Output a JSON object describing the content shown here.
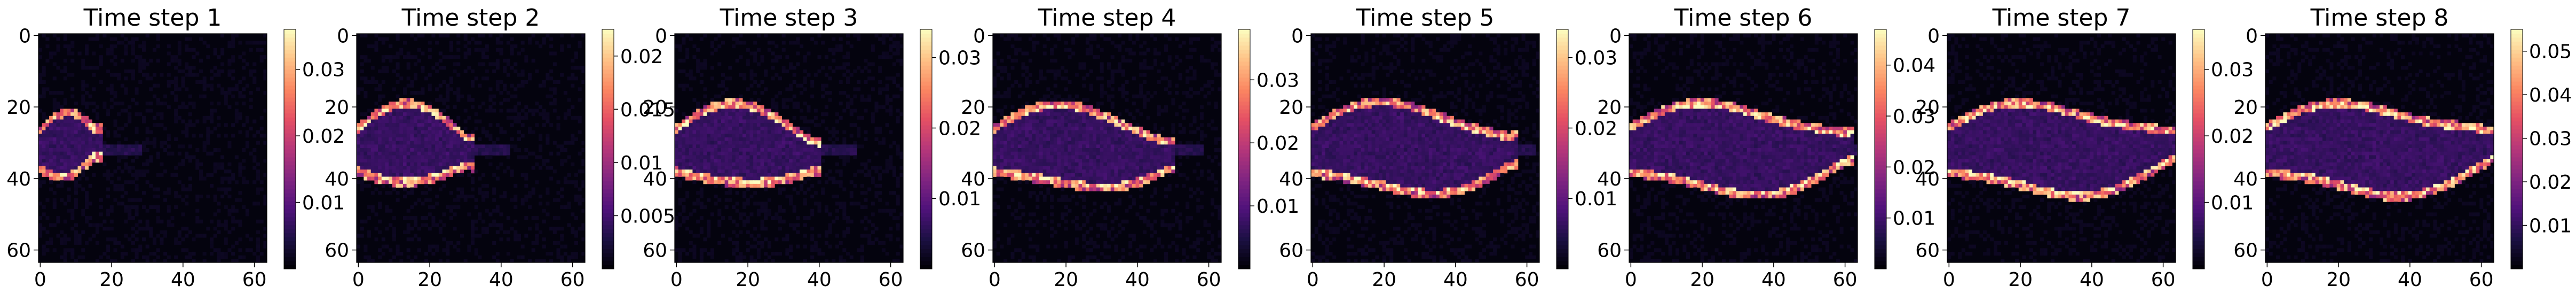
{
  "chart_data": [
    {
      "type": "heatmap",
      "title": "Time step 1",
      "grid_size": 64,
      "xlim": [
        0,
        63
      ],
      "ylim": [
        63,
        0
      ],
      "x_ticks": [
        0,
        20,
        40,
        60
      ],
      "y_ticks": [
        0,
        20,
        40,
        60
      ],
      "colorbar_ticks": [
        0.01,
        0.02,
        0.03
      ],
      "colorbar_range": [
        0.0,
        0.036
      ],
      "front_x": 15,
      "front_amplitude": 5,
      "front_tail_x": 28
    },
    {
      "type": "heatmap",
      "title": "Time step 2",
      "grid_size": 64,
      "xlim": [
        0,
        63
      ],
      "ylim": [
        63,
        0
      ],
      "x_ticks": [
        0,
        20,
        40,
        60
      ],
      "y_ticks": [
        0,
        20,
        40,
        60
      ],
      "colorbar_ticks": [
        0.005,
        0.01,
        0.015,
        0.02
      ],
      "colorbar_range": [
        0.0,
        0.0225
      ],
      "front_x": 30,
      "front_amplitude": 7,
      "front_tail_x": 42
    },
    {
      "type": "heatmap",
      "title": "Time step 3",
      "grid_size": 64,
      "xlim": [
        0,
        63
      ],
      "ylim": [
        63,
        0
      ],
      "x_ticks": [
        0,
        20,
        40,
        60
      ],
      "y_ticks": [
        0,
        20,
        40,
        60
      ],
      "colorbar_ticks": [
        0.01,
        0.02,
        0.03
      ],
      "colorbar_range": [
        0.0,
        0.034
      ],
      "front_x": 38,
      "front_amplitude": 7,
      "front_tail_x": 50
    },
    {
      "type": "heatmap",
      "title": "Time step 4",
      "grid_size": 64,
      "xlim": [
        0,
        63
      ],
      "ylim": [
        63,
        0
      ],
      "x_ticks": [
        0,
        20,
        40,
        60
      ],
      "y_ticks": [
        0,
        20,
        40,
        60
      ],
      "colorbar_ticks": [
        0.01,
        0.02,
        0.03
      ],
      "colorbar_range": [
        0.0,
        0.038
      ],
      "front_x": 48,
      "front_amplitude": 7,
      "front_tail_x": 58
    },
    {
      "type": "heatmap",
      "title": "Time step 5",
      "grid_size": 64,
      "xlim": [
        0,
        63
      ],
      "ylim": [
        63,
        0
      ],
      "x_ticks": [
        0,
        20,
        40,
        60
      ],
      "y_ticks": [
        0,
        20,
        40,
        60
      ],
      "colorbar_ticks": [
        0.01,
        0.02,
        0.03
      ],
      "colorbar_range": [
        0.0,
        0.034
      ],
      "front_x": 55,
      "front_amplitude": 8,
      "front_tail_x": 62
    },
    {
      "type": "heatmap",
      "title": "Time step 6",
      "grid_size": 64,
      "xlim": [
        0,
        63
      ],
      "ylim": [
        63,
        0
      ],
      "x_ticks": [
        0,
        20,
        40,
        60
      ],
      "y_ticks": [
        0,
        20,
        40,
        60
      ],
      "colorbar_ticks": [
        0.01,
        0.02,
        0.03,
        0.04
      ],
      "colorbar_range": [
        0.0,
        0.047
      ],
      "front_x": 60,
      "front_amplitude": 8,
      "front_tail_x": 63
    },
    {
      "type": "heatmap",
      "title": "Time step 7",
      "grid_size": 64,
      "xlim": [
        0,
        63
      ],
      "ylim": [
        63,
        0
      ],
      "x_ticks": [
        0,
        20,
        40,
        60
      ],
      "y_ticks": [
        0,
        20,
        40,
        60
      ],
      "colorbar_ticks": [
        0.01,
        0.02,
        0.03
      ],
      "colorbar_range": [
        0.0,
        0.036
      ],
      "front_x": 62,
      "front_amplitude": 8,
      "front_tail_x": 63
    },
    {
      "type": "heatmap",
      "title": "Time step 8",
      "grid_size": 64,
      "xlim": [
        0,
        63
      ],
      "ylim": [
        63,
        0
      ],
      "x_ticks": [
        0,
        20,
        40,
        60
      ],
      "y_ticks": [
        0,
        20,
        40,
        60
      ],
      "colorbar_ticks": [
        0.01,
        0.02,
        0.03,
        0.04,
        0.05
      ],
      "colorbar_range": [
        0.0,
        0.055
      ],
      "front_x": 63,
      "front_amplitude": 8,
      "front_tail_x": 63
    }
  ],
  "colormap": [
    "#000004",
    "#1c1044",
    "#4f127b",
    "#812581",
    "#b5367a",
    "#e55064",
    "#fb8761",
    "#fec287",
    "#fcfdbf"
  ]
}
